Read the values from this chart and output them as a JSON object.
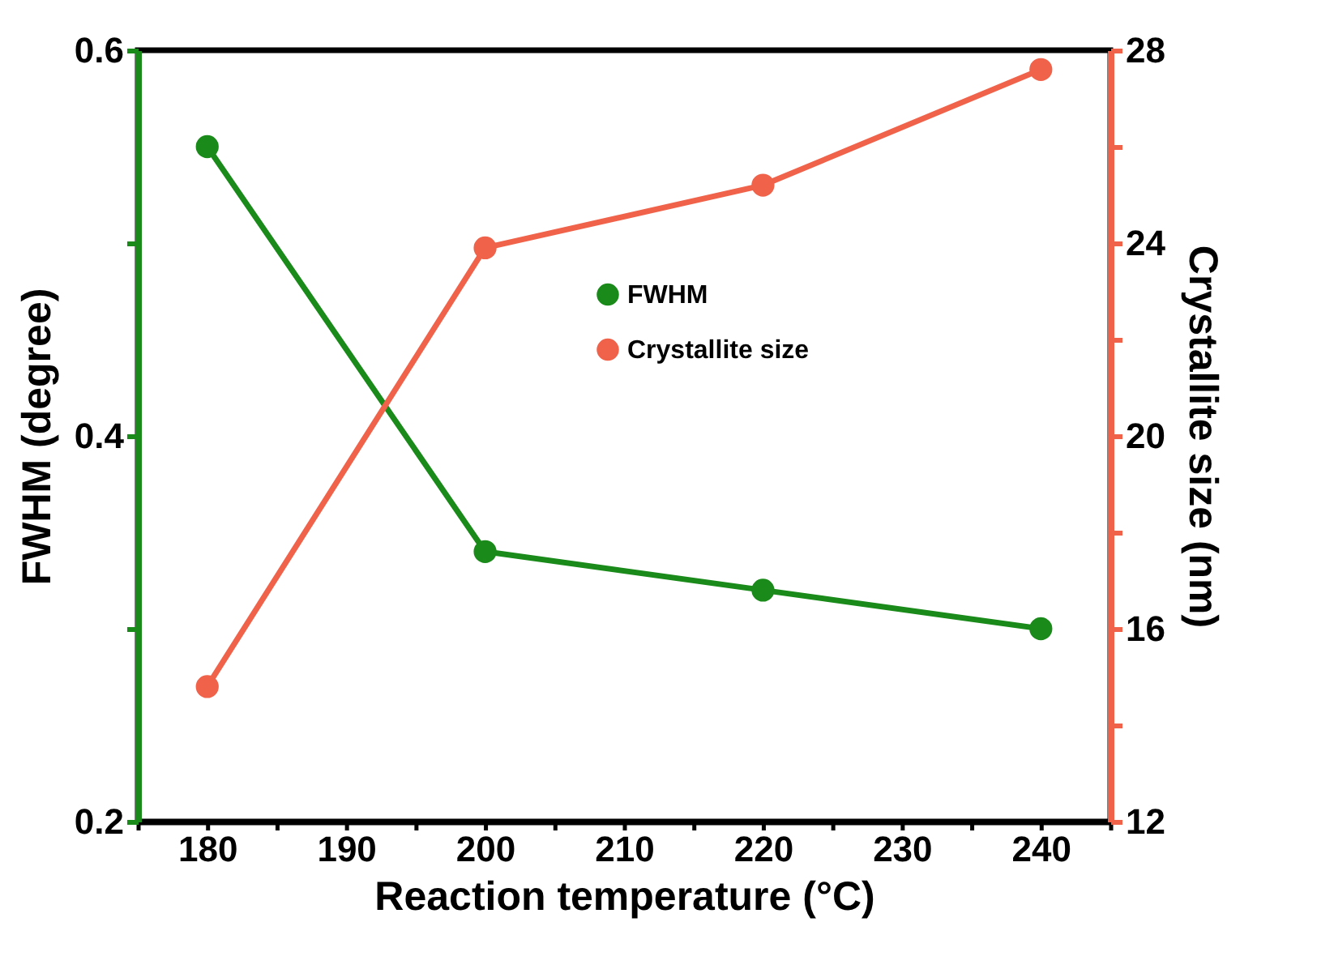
{
  "chart_data": {
    "type": "line",
    "xlabel": "Reaction temperature (°C)",
    "ylabel": "FWHM (degree)",
    "y2label": "Crystallite size (nm)",
    "x": [
      180,
      200,
      220,
      240
    ],
    "series": [
      {
        "name": "FWHM",
        "color": "#1a8a1a",
        "values": [
          0.55,
          0.34,
          0.32,
          0.3
        ]
      },
      {
        "name": "Crystallite size",
        "color": "#f0624a",
        "axis": "y2",
        "values": [
          14.8,
          23.9,
          25.2,
          27.6
        ]
      }
    ],
    "xlim": [
      175,
      245
    ],
    "xticks": [
      {
        "value": 175,
        "label": null
      },
      180,
      {
        "value": 185,
        "label": null
      },
      190,
      {
        "value": 195,
        "label": null
      },
      200,
      {
        "value": 205,
        "label": null
      },
      210,
      {
        "value": 215,
        "label": null
      },
      220,
      {
        "value": 225,
        "label": null
      },
      230,
      {
        "value": 235,
        "label": null
      },
      240,
      {
        "value": 245,
        "label": null
      }
    ],
    "ylim": [
      0.2,
      0.6
    ],
    "yticks": [
      {
        "value": 0.2,
        "label": "0.2"
      },
      {
        "value": 0.3,
        "label": null
      },
      {
        "value": 0.4,
        "label": "0.4"
      },
      {
        "value": 0.5,
        "label": null
      },
      {
        "value": 0.6,
        "label": "0.6"
      }
    ],
    "y2lim": [
      12,
      28
    ],
    "y2ticks": [
      12,
      {
        "value": 14,
        "label": null
      },
      16,
      {
        "value": 18,
        "label": null
      },
      20,
      {
        "value": 22,
        "label": null
      },
      24,
      {
        "value": 26,
        "label": null
      },
      28
    ],
    "marker": "circle",
    "line_style": "solid",
    "legend": "top"
  }
}
